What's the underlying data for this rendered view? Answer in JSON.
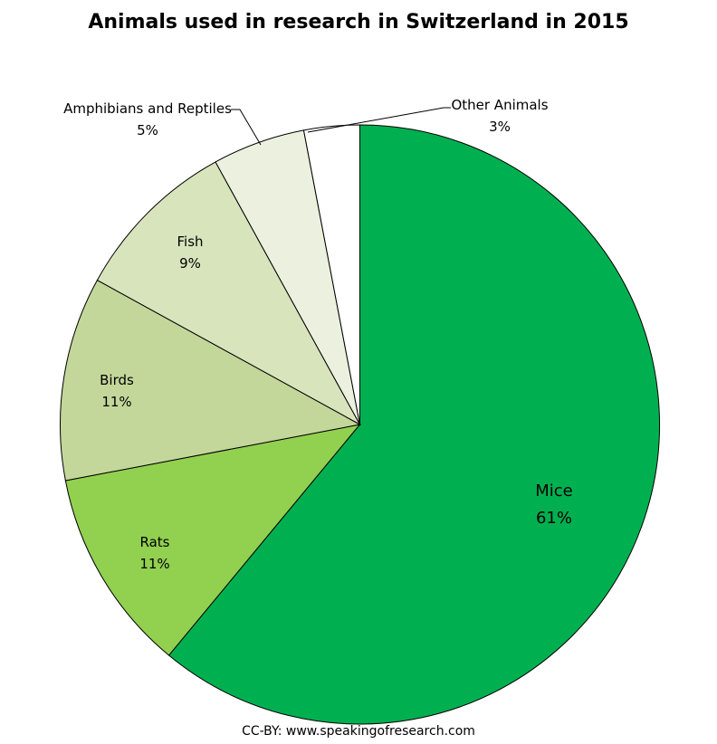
{
  "chart_data": {
    "type": "pie",
    "title": "Animals used in research in Switzerland in 2015",
    "start": "12 o'clock, clockwise",
    "slices": [
      {
        "label": "Mice",
        "value": 61,
        "display": "61%",
        "color": "#00B050"
      },
      {
        "label": "Rats",
        "value": 11,
        "display": "11%",
        "color": "#92D050"
      },
      {
        "label": "Birds",
        "value": 11,
        "display": "11%",
        "color": "#C4D79B"
      },
      {
        "label": "Fish",
        "value": 9,
        "display": "9%",
        "color": "#D8E4BC"
      },
      {
        "label": "Amphibians and Reptiles",
        "value": 5,
        "display": "5%",
        "color": "#EBF1DE"
      },
      {
        "label": "Other Animals",
        "value": 3,
        "display": "3%",
        "color": "#FFFFFF"
      }
    ]
  },
  "credit": "CC-BY: www.speakingofresearch.com"
}
